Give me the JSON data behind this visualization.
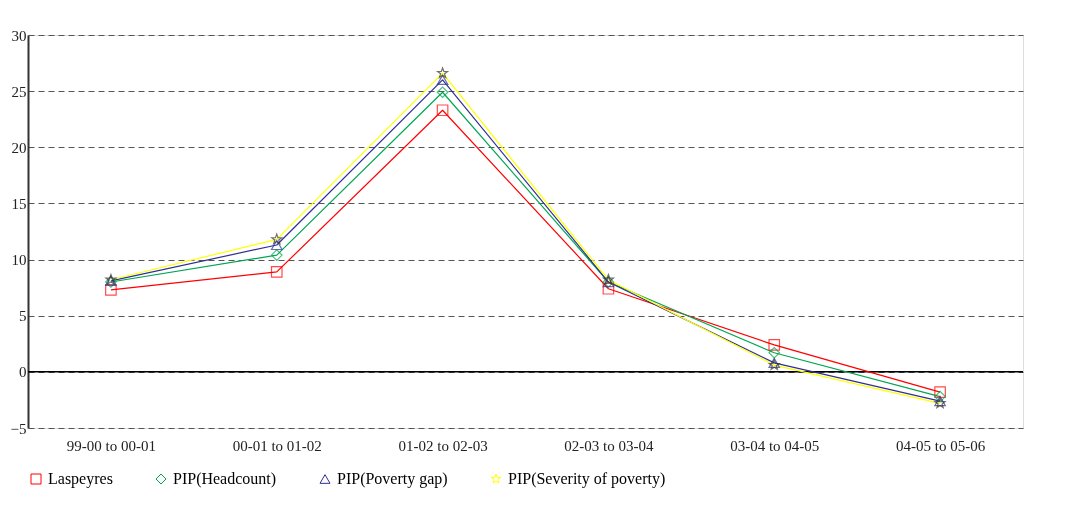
{
  "chart_data": {
    "type": "line",
    "categories": [
      "99-00 to 00-01",
      "00-01 to 01-02",
      "01-02 to 02-03",
      "02-03 to 03-04",
      "03-04 to 04-05",
      "04-05 to 05-06"
    ],
    "series": [
      {
        "name": "Laspeyres",
        "color": "#ff0000",
        "marker": "square",
        "values": [
          7.3,
          8.9,
          23.3,
          7.4,
          2.4,
          -1.8
        ]
      },
      {
        "name": "PIP(Headcount)",
        "color": "#00a651",
        "marker": "diamond",
        "values": [
          8.0,
          10.4,
          24.9,
          8.0,
          1.7,
          -2.2
        ]
      },
      {
        "name": "PIP(Poverty gap)",
        "color": "#2e3192",
        "marker": "triangle",
        "values": [
          8.1,
          11.3,
          26.0,
          8.0,
          0.8,
          -2.6
        ]
      },
      {
        "name": "PIP(Severity of poverty)",
        "color": "#ffff00",
        "marker": "star",
        "values": [
          8.2,
          11.8,
          26.6,
          8.2,
          0.6,
          -2.8
        ]
      }
    ],
    "ylim": [
      -5,
      30
    ],
    "yticks": [
      -5,
      0,
      5,
      10,
      15,
      20,
      25,
      30
    ],
    "grid": "y",
    "legend": "bottom",
    "ref_lines": [
      {
        "axis": "y",
        "value": 0,
        "color": "#000000",
        "line_style": "solid"
      }
    ]
  }
}
